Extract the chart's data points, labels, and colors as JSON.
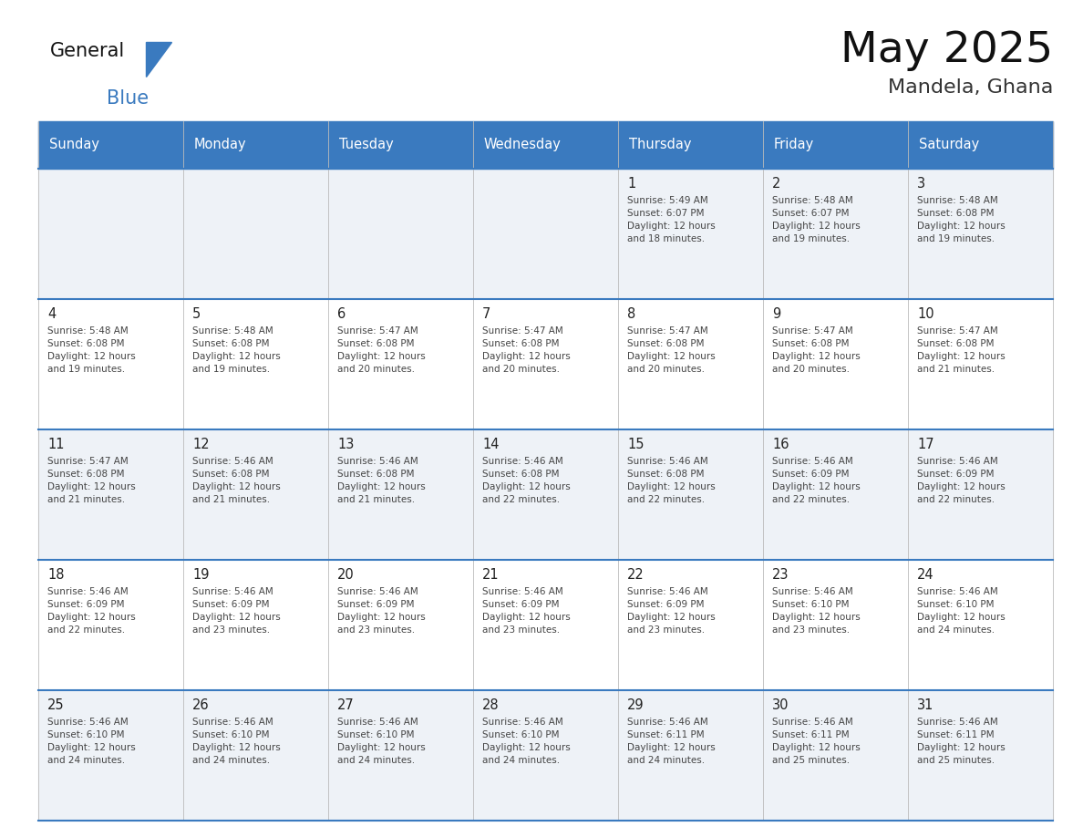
{
  "title": "May 2025",
  "subtitle": "Mandela, Ghana",
  "days_of_week": [
    "Sunday",
    "Monday",
    "Tuesday",
    "Wednesday",
    "Thursday",
    "Friday",
    "Saturday"
  ],
  "header_bg": "#3a7abf",
  "header_text": "#ffffff",
  "cell_bg_even": "#eef2f7",
  "cell_bg_odd": "#ffffff",
  "row_line_color": "#3a7abf",
  "day_number_color": "#222222",
  "info_text_color": "#444444",
  "background_color": "#ffffff",
  "calendar_data": [
    [
      "",
      "",
      "",
      "",
      "1\nSunrise: 5:49 AM\nSunset: 6:07 PM\nDaylight: 12 hours\nand 18 minutes.",
      "2\nSunrise: 5:48 AM\nSunset: 6:07 PM\nDaylight: 12 hours\nand 19 minutes.",
      "3\nSunrise: 5:48 AM\nSunset: 6:08 PM\nDaylight: 12 hours\nand 19 minutes."
    ],
    [
      "4\nSunrise: 5:48 AM\nSunset: 6:08 PM\nDaylight: 12 hours\nand 19 minutes.",
      "5\nSunrise: 5:48 AM\nSunset: 6:08 PM\nDaylight: 12 hours\nand 19 minutes.",
      "6\nSunrise: 5:47 AM\nSunset: 6:08 PM\nDaylight: 12 hours\nand 20 minutes.",
      "7\nSunrise: 5:47 AM\nSunset: 6:08 PM\nDaylight: 12 hours\nand 20 minutes.",
      "8\nSunrise: 5:47 AM\nSunset: 6:08 PM\nDaylight: 12 hours\nand 20 minutes.",
      "9\nSunrise: 5:47 AM\nSunset: 6:08 PM\nDaylight: 12 hours\nand 20 minutes.",
      "10\nSunrise: 5:47 AM\nSunset: 6:08 PM\nDaylight: 12 hours\nand 21 minutes."
    ],
    [
      "11\nSunrise: 5:47 AM\nSunset: 6:08 PM\nDaylight: 12 hours\nand 21 minutes.",
      "12\nSunrise: 5:46 AM\nSunset: 6:08 PM\nDaylight: 12 hours\nand 21 minutes.",
      "13\nSunrise: 5:46 AM\nSunset: 6:08 PM\nDaylight: 12 hours\nand 21 minutes.",
      "14\nSunrise: 5:46 AM\nSunset: 6:08 PM\nDaylight: 12 hours\nand 22 minutes.",
      "15\nSunrise: 5:46 AM\nSunset: 6:08 PM\nDaylight: 12 hours\nand 22 minutes.",
      "16\nSunrise: 5:46 AM\nSunset: 6:09 PM\nDaylight: 12 hours\nand 22 minutes.",
      "17\nSunrise: 5:46 AM\nSunset: 6:09 PM\nDaylight: 12 hours\nand 22 minutes."
    ],
    [
      "18\nSunrise: 5:46 AM\nSunset: 6:09 PM\nDaylight: 12 hours\nand 22 minutes.",
      "19\nSunrise: 5:46 AM\nSunset: 6:09 PM\nDaylight: 12 hours\nand 23 minutes.",
      "20\nSunrise: 5:46 AM\nSunset: 6:09 PM\nDaylight: 12 hours\nand 23 minutes.",
      "21\nSunrise: 5:46 AM\nSunset: 6:09 PM\nDaylight: 12 hours\nand 23 minutes.",
      "22\nSunrise: 5:46 AM\nSunset: 6:09 PM\nDaylight: 12 hours\nand 23 minutes.",
      "23\nSunrise: 5:46 AM\nSunset: 6:10 PM\nDaylight: 12 hours\nand 23 minutes.",
      "24\nSunrise: 5:46 AM\nSunset: 6:10 PM\nDaylight: 12 hours\nand 24 minutes."
    ],
    [
      "25\nSunrise: 5:46 AM\nSunset: 6:10 PM\nDaylight: 12 hours\nand 24 minutes.",
      "26\nSunrise: 5:46 AM\nSunset: 6:10 PM\nDaylight: 12 hours\nand 24 minutes.",
      "27\nSunrise: 5:46 AM\nSunset: 6:10 PM\nDaylight: 12 hours\nand 24 minutes.",
      "28\nSunrise: 5:46 AM\nSunset: 6:10 PM\nDaylight: 12 hours\nand 24 minutes.",
      "29\nSunrise: 5:46 AM\nSunset: 6:11 PM\nDaylight: 12 hours\nand 24 minutes.",
      "30\nSunrise: 5:46 AM\nSunset: 6:11 PM\nDaylight: 12 hours\nand 25 minutes.",
      "31\nSunrise: 5:46 AM\nSunset: 6:11 PM\nDaylight: 12 hours\nand 25 minutes."
    ]
  ]
}
